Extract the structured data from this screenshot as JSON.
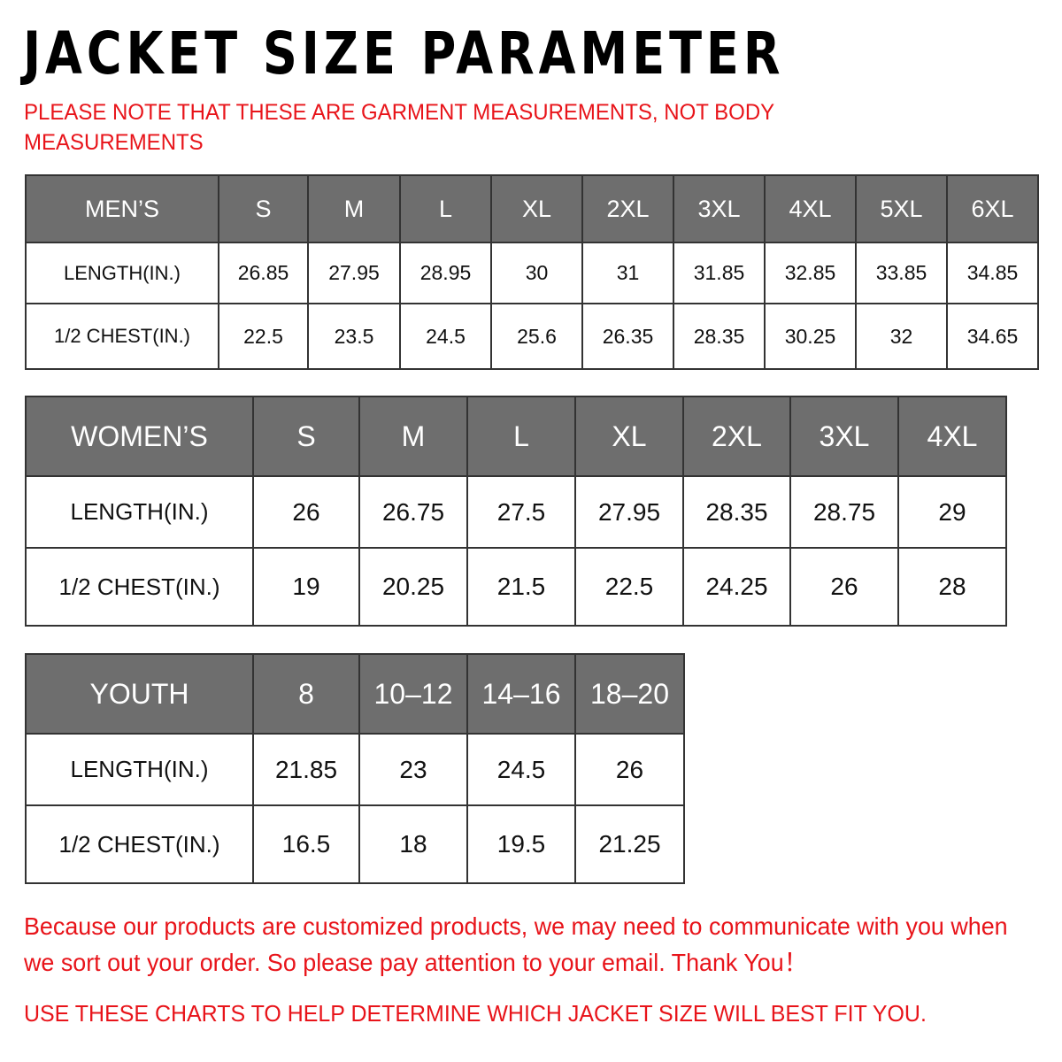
{
  "title": "JACKET SIZE PARAMETER",
  "note": "PLEASE NOTE THAT THESE ARE GARMENT MEASUREMENTS, NOT BODY MEASUREMENTS",
  "colors": {
    "header_bg": "#6e6e6e",
    "accent_red": "#e8141a"
  },
  "tables": [
    {
      "header": [
        "MEN’S",
        "S",
        "M",
        "L",
        "XL",
        "2XL",
        "3XL",
        "4XL",
        "5XL",
        "6XL"
      ],
      "rows": [
        [
          "LENGTH(IN.)",
          "26.85",
          "27.95",
          "28.95",
          "30",
          "31",
          "31.85",
          "32.85",
          "33.85",
          "34.85"
        ],
        [
          "1/2 CHEST(IN.)",
          "22.5",
          "23.5",
          "24.5",
          "25.6",
          "26.35",
          "28.35",
          "30.25",
          "32",
          "34.65"
        ]
      ]
    },
    {
      "header": [
        "WOMEN’S",
        "S",
        "M",
        "L",
        "XL",
        "2XL",
        "3XL",
        "4XL"
      ],
      "rows": [
        [
          "LENGTH(IN.)",
          "26",
          "26.75",
          "27.5",
          "27.95",
          "28.35",
          "28.75",
          "29"
        ],
        [
          "1/2 CHEST(IN.)",
          "19",
          "20.25",
          "21.5",
          "22.5",
          "24.25",
          "26",
          "28"
        ]
      ]
    },
    {
      "header": [
        "YOUTH",
        "8",
        "10–12",
        "14–16",
        "18–20"
      ],
      "rows": [
        [
          "LENGTH(IN.)",
          "21.85",
          "23",
          "24.5",
          "26"
        ],
        [
          "1/2 CHEST(IN.)",
          "16.5",
          "18",
          "19.5",
          "21.25"
        ]
      ]
    }
  ],
  "footer": {
    "message": "Because our products are customized products, we may need to communicate with you when we sort out your order. So please pay attention to your email. Thank You！",
    "advice": "USE THESE CHARTS TO HELP DETERMINE WHICH JACKET SIZE WILL BEST FIT YOU."
  }
}
